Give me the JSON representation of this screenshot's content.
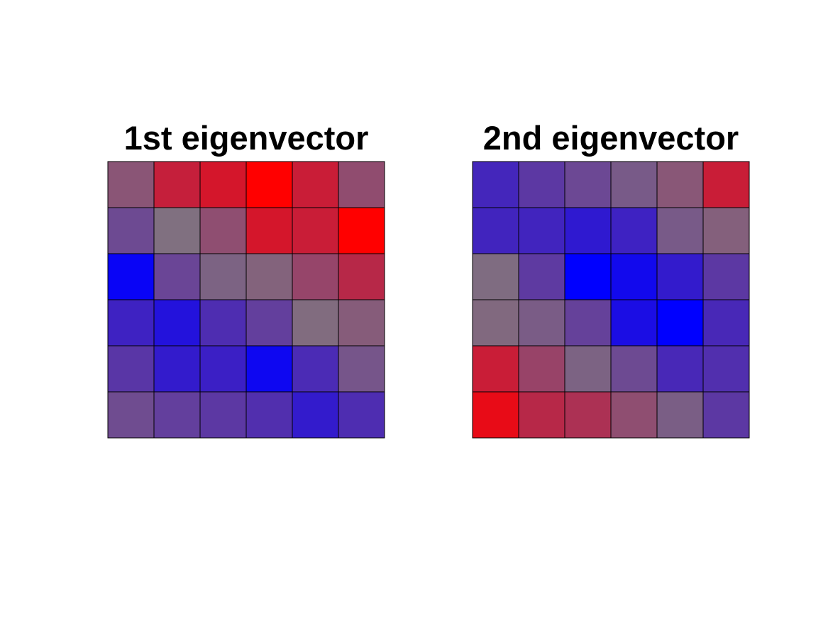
{
  "chart_data": [
    {
      "type": "heatmap",
      "title": "1st eigenvector",
      "rows": 6,
      "cols": 6,
      "values": [
        [
          0.62,
          0.86,
          0.9,
          1.0,
          0.87,
          0.66
        ],
        [
          0.33,
          0.5,
          0.65,
          0.9,
          0.87,
          1.0
        ],
        [
          0.02,
          0.31,
          0.44,
          0.56,
          0.69,
          0.82
        ],
        [
          0.15,
          0.08,
          0.2,
          0.28,
          0.52,
          0.59
        ],
        [
          0.24,
          0.12,
          0.14,
          0.03,
          0.19,
          0.38
        ],
        [
          0.34,
          0.28,
          0.25,
          0.21,
          0.12,
          0.2
        ]
      ],
      "colormap": {
        "low": "#0000ff",
        "high": "#ff0000"
      },
      "grid": true
    },
    {
      "type": "heatmap",
      "title": "2nd eigenvector",
      "rows": 6,
      "cols": 6,
      "values": [
        [
          0.17,
          0.25,
          0.32,
          0.4,
          0.61,
          0.87
        ],
        [
          0.16,
          0.16,
          0.11,
          0.15,
          0.4,
          0.57
        ],
        [
          0.48,
          0.26,
          0.0,
          0.04,
          0.12,
          0.25
        ],
        [
          0.53,
          0.41,
          0.29,
          0.06,
          0.0,
          0.18
        ],
        [
          0.87,
          0.7,
          0.44,
          0.33,
          0.18,
          0.21
        ],
        [
          0.95,
          0.82,
          0.78,
          0.65,
          0.42,
          0.25
        ]
      ],
      "colormap": {
        "low": "#0000ff",
        "high": "#ff0000"
      },
      "grid": true
    }
  ]
}
